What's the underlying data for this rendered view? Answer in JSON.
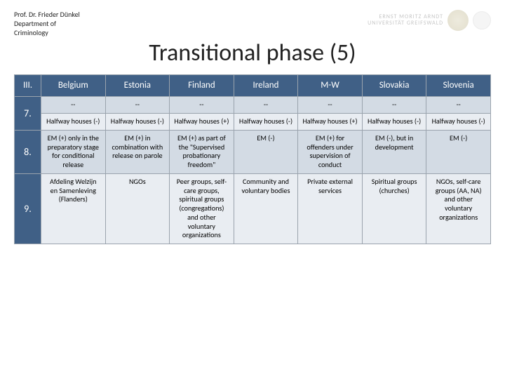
{
  "colors": {
    "header_bg": "#406086",
    "header_text": "#ffffff",
    "band_a": "#d3dbe4",
    "band_b": "#e9edf2",
    "border": "#9aa3ad"
  },
  "affiliation": {
    "line1": "Prof. Dr. Frieder Dünkel",
    "line2": "Department of",
    "line3": "Criminology"
  },
  "logo": {
    "text_line1": "ERNST MORITZ ARNDT",
    "text_line2": "UNIVERSITÄT GREIFSWALD"
  },
  "title": "Transitional phase (5)",
  "table": {
    "col_header_idx": "III.",
    "countries": [
      "Belgium",
      "Estonia",
      "Finland",
      "Ireland",
      "M-W",
      "Slovakia",
      "Slovenia"
    ],
    "rows": [
      {
        "idx": "7.",
        "cells_a": [
          "--",
          "--",
          "--",
          "--",
          "--",
          "--",
          "--"
        ],
        "cells_b": [
          "Halfway houses (-)",
          "Halfway houses (-)",
          "Halfway houses (+)",
          "Halfway houses (-)",
          "Halfway houses (+)",
          "Halfway houses (-)",
          "Halfway houses (-)"
        ]
      },
      {
        "idx": "8.",
        "cells": [
          "EM (+) only in the preparatory stage for conditional release",
          "EM (+) in combination with release on parole",
          "EM (+) as part of the \"Supervised probationary freedom\"",
          "EM (-)",
          "EM (+) for offenders under supervision of conduct",
          "EM (-), but in development",
          "EM (-)"
        ]
      },
      {
        "idx": "9.",
        "cells": [
          "Afdeling Welzijn en Samenleving (Flanders)",
          "NGOs",
          "Peer groups, self-care groups, spiritual groups (congregations) and other voluntary organizations",
          "Community and voluntary bodies",
          "Private external services",
          "Spiritual groups (churches)",
          "NGOs, self-care groups (AA, NA) and other voluntary organizations"
        ]
      }
    ]
  }
}
